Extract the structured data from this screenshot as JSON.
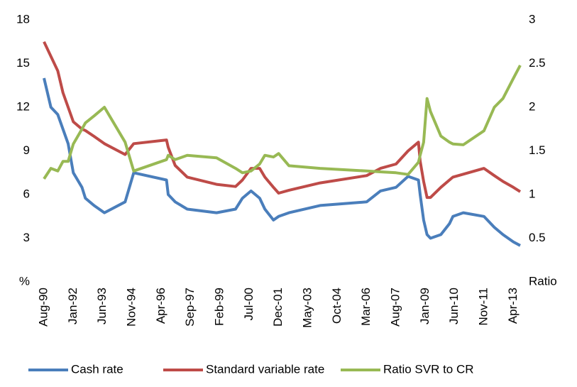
{
  "chart_data": {
    "type": "line",
    "x": [
      "1990-08",
      "1990-12",
      "1991-04",
      "1991-07",
      "1991-10",
      "1992-01",
      "1992-06",
      "1992-08",
      "1993-01",
      "1993-07",
      "1994-07",
      "1994-12",
      "1996-07",
      "1996-08",
      "1996-12",
      "1997-07",
      "1998-12",
      "1999-11",
      "2000-03",
      "2000-08",
      "2001-01",
      "2001-04",
      "2001-09",
      "2001-12",
      "2002-06",
      "2003-12",
      "2006-03",
      "2006-11",
      "2007-08",
      "2008-03",
      "2008-09",
      "2008-10",
      "2008-12",
      "2009-02",
      "2009-04",
      "2009-10",
      "2010-03",
      "2010-05",
      "2010-11",
      "2011-11",
      "2012-05",
      "2012-10",
      "2013-04",
      "2013-08"
    ],
    "series": [
      {
        "name": "Cash rate",
        "color": "#4a7ebb",
        "values": [
          14,
          12,
          11.5,
          10.5,
          9.5,
          7.5,
          6.5,
          5.75,
          5.25,
          4.75,
          5.5,
          7.5,
          7.0,
          6.0,
          5.5,
          5.0,
          4.75,
          5.0,
          5.75,
          6.25,
          5.75,
          5.0,
          4.25,
          4.5,
          4.75,
          5.25,
          5.5,
          6.25,
          6.5,
          7.25,
          7.0,
          6.0,
          4.25,
          3.25,
          3.0,
          3.25,
          4.0,
          4.5,
          4.75,
          4.5,
          3.75,
          3.25,
          2.75,
          2.5
        ]
      },
      {
        "name": "Standard variable rate",
        "color": "#be4b48",
        "values": [
          16.5,
          15.5,
          14.5,
          13.0,
          12.0,
          11.0,
          10.5,
          10.4,
          10.0,
          9.5,
          8.75,
          9.5,
          9.75,
          9.25,
          8.0,
          7.2,
          6.7,
          6.55,
          7.0,
          7.8,
          7.8,
          7.2,
          6.5,
          6.1,
          6.3,
          6.8,
          7.3,
          7.8,
          8.1,
          9.0,
          9.6,
          8.3,
          6.9,
          5.8,
          5.8,
          6.5,
          7.0,
          7.2,
          7.4,
          7.8,
          7.3,
          6.9,
          6.5,
          6.2
        ]
      },
      {
        "name": "Ratio SVR to CR",
        "color": "#98b954",
        "axis": "y2",
        "values": [
          1.18,
          1.3,
          1.27,
          1.38,
          1.38,
          1.58,
          1.75,
          1.82,
          1.9,
          2.0,
          1.6,
          1.27,
          1.4,
          1.45,
          1.4,
          1.45,
          1.42,
          1.3,
          1.25,
          1.27,
          1.35,
          1.45,
          1.43,
          1.47,
          1.33,
          1.3,
          1.27,
          1.26,
          1.25,
          1.23,
          1.37,
          1.45,
          1.6,
          2.1,
          1.95,
          1.67,
          1.6,
          1.58,
          1.57,
          1.73,
          2.0,
          2.1,
          2.33,
          2.48
        ]
      }
    ],
    "xticks": [
      {
        "value": "1990-08",
        "label": "Aug-90"
      },
      {
        "value": "1992-01",
        "label": "Jan-92"
      },
      {
        "value": "1993-06",
        "label": "Jun-93"
      },
      {
        "value": "1994-11",
        "label": "Nov-94"
      },
      {
        "value": "1996-04",
        "label": "Apr-96"
      },
      {
        "value": "1997-09",
        "label": "Sep-97"
      },
      {
        "value": "1999-02",
        "label": "Feb-99"
      },
      {
        "value": "2000-07",
        "label": "Jul-00"
      },
      {
        "value": "2001-12",
        "label": "Dec-01"
      },
      {
        "value": "2003-05",
        "label": "May-03"
      },
      {
        "value": "2004-10",
        "label": "Oct-04"
      },
      {
        "value": "2006-03",
        "label": "Mar-06"
      },
      {
        "value": "2007-08",
        "label": "Aug-07"
      },
      {
        "value": "2009-01",
        "label": "Jan-09"
      },
      {
        "value": "2010-06",
        "label": "Jun-10"
      },
      {
        "value": "2011-11",
        "label": "Nov-11"
      },
      {
        "value": "2013-04",
        "label": "Apr-13"
      }
    ],
    "ylim": [
      0,
      18
    ],
    "yticks": [
      {
        "value": 0,
        "label": "%"
      },
      3,
      6,
      9,
      12,
      15,
      18
    ],
    "y2lim": [
      0,
      3
    ],
    "y2ticks": [
      {
        "value": 0,
        "label": "Ratio"
      },
      0.5,
      1,
      1.5,
      2,
      2.5,
      3
    ],
    "legend": "bottom"
  }
}
